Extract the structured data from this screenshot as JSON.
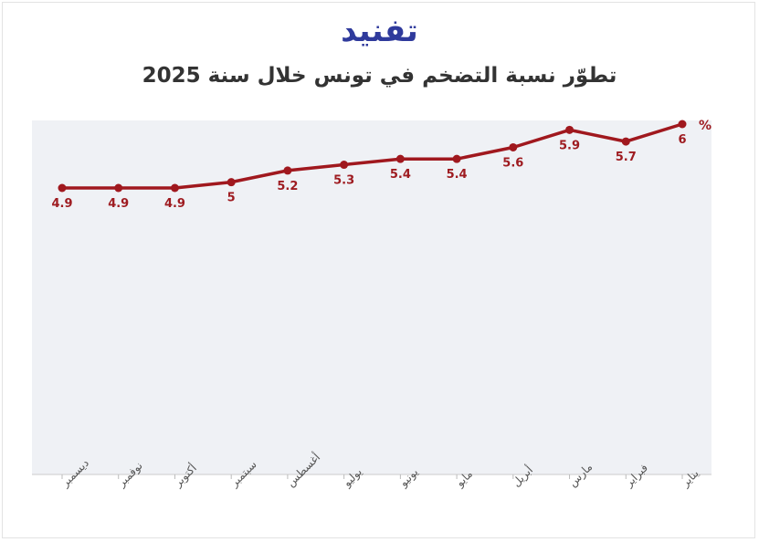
{
  "header": {
    "logo_text": "تفنيد",
    "title": "تطوّر نسبة التضخم في تونس خلال سنة 2025"
  },
  "colors": {
    "line": "#a0181e",
    "plot_bg": "#eff1f5",
    "logo": "#2f3a9c"
  },
  "chart_data": {
    "type": "line",
    "title": "تطوّر نسبة التضخم في تونس خلال سنة 2025",
    "unit_label": "%",
    "categories": [
      "ديسمبر",
      "نوفمبر",
      "أكتوبر",
      "سبتمبر",
      "أغسطس",
      "يوليو",
      "يونيو",
      "مايو",
      "أبريل",
      "مارس",
      "فبراير",
      "يناير"
    ],
    "value_labels": [
      "4.9",
      "4.9",
      "4.9",
      "5",
      "5.2",
      "5.3",
      "5.4",
      "5.4",
      "5.6",
      "5.9",
      "5.7",
      "6"
    ],
    "values": [
      4.9,
      4.9,
      4.9,
      5.0,
      5.2,
      5.3,
      5.4,
      5.4,
      5.6,
      5.9,
      5.7,
      6.0
    ],
    "ylim": [
      0,
      6
    ],
    "grid": false,
    "legend": "none"
  }
}
